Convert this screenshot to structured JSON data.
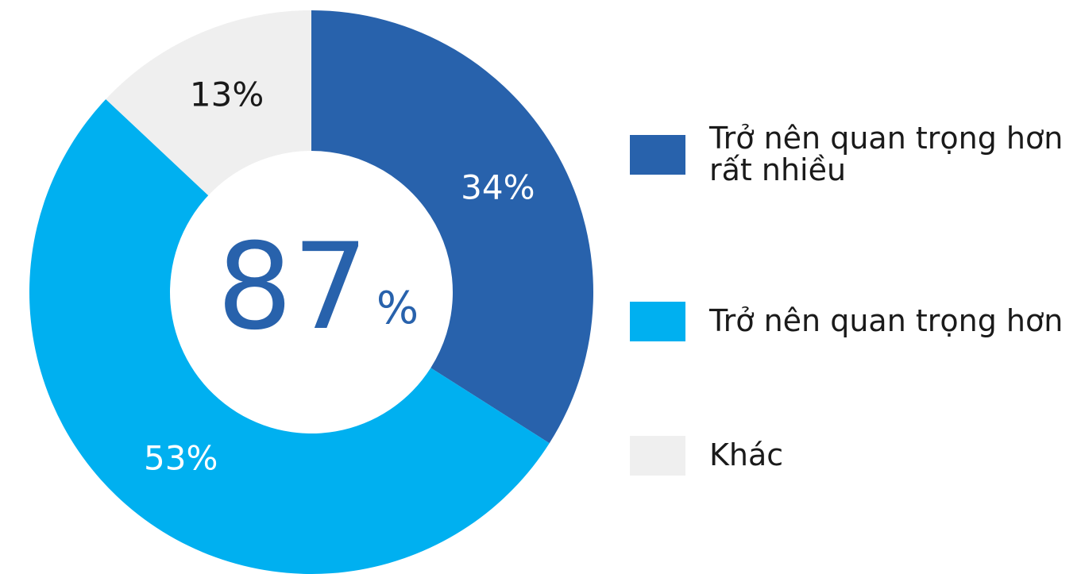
{
  "chart_data": {
    "type": "donut",
    "categories": [
      "Trở nên quan trọng hơn rất nhiều",
      "Trở nên quan trọng hơn",
      "Khác"
    ],
    "values": [
      34,
      53,
      13
    ],
    "value_labels": [
      "34%",
      "53%",
      "13%"
    ],
    "colors": [
      "#2862ac",
      "#00b0f0",
      "#efefef"
    ],
    "label_colors": [
      "#ffffff",
      "#ffffff",
      "#1a1a1a"
    ],
    "center_text": [
      "87",
      "%"
    ],
    "legend": "right"
  }
}
